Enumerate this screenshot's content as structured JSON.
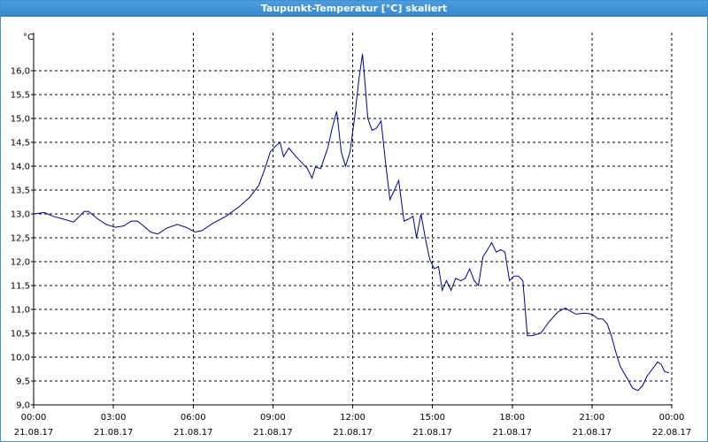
{
  "window_title": "Taupunkt-Temperatur [°C] skaliert",
  "chart_data": {
    "type": "line",
    "y_unit": "°C",
    "x": [
      0,
      0.4,
      0.73,
      1.07,
      1.5,
      1.9,
      2.07,
      2.4,
      2.73,
      3.07,
      3.4,
      3.67,
      3.9,
      4.13,
      4.4,
      4.67,
      5.0,
      5.4,
      5.73,
      6.07,
      6.33,
      6.73,
      7.23,
      7.73,
      8.13,
      8.47,
      8.73,
      8.9,
      9.1,
      9.27,
      9.4,
      9.6,
      9.87,
      10.13,
      10.3,
      10.47,
      10.6,
      10.8,
      11.07,
      11.23,
      11.4,
      11.57,
      11.73,
      11.9,
      12.07,
      12.23,
      12.37,
      12.47,
      12.57,
      12.73,
      12.9,
      13.07,
      13.23,
      13.4,
      13.57,
      13.73,
      13.93,
      14.13,
      14.27,
      14.4,
      14.57,
      14.73,
      14.9,
      15.07,
      15.23,
      15.37,
      15.53,
      15.7,
      15.87,
      16.07,
      16.23,
      16.4,
      16.57,
      16.73,
      16.9,
      17.07,
      17.23,
      17.4,
      17.57,
      17.73,
      17.9,
      18.07,
      18.23,
      18.4,
      18.57,
      18.73,
      19.07,
      19.4,
      19.73,
      20.0,
      20.23,
      20.4,
      20.73,
      21.0,
      21.23,
      21.4,
      21.57,
      21.73,
      21.9,
      22.07,
      22.33,
      22.53,
      22.73,
      22.9,
      23.07,
      23.27,
      23.47,
      23.6,
      23.73,
      23.9
    ],
    "series": [
      {
        "color": "#00008c",
        "values": [
          13.0,
          13.03,
          12.95,
          12.9,
          12.83,
          13.05,
          13.05,
          12.9,
          12.78,
          12.72,
          12.75,
          12.85,
          12.85,
          12.75,
          12.62,
          12.58,
          12.7,
          12.78,
          12.72,
          12.62,
          12.65,
          12.8,
          12.95,
          13.15,
          13.35,
          13.6,
          14.0,
          14.3,
          14.42,
          14.5,
          14.2,
          14.38,
          14.2,
          14.05,
          13.95,
          13.75,
          13.98,
          13.95,
          14.4,
          14.8,
          15.15,
          14.3,
          14.0,
          14.3,
          15.0,
          15.8,
          16.35,
          15.7,
          15.0,
          14.75,
          14.8,
          14.95,
          14.1,
          13.3,
          13.5,
          13.7,
          12.85,
          12.9,
          12.95,
          12.5,
          13.0,
          12.5,
          12.05,
          11.85,
          11.9,
          11.4,
          11.6,
          11.4,
          11.65,
          11.6,
          11.65,
          11.85,
          11.6,
          11.5,
          12.1,
          12.25,
          12.4,
          12.2,
          12.25,
          12.2,
          11.6,
          11.7,
          11.7,
          11.6,
          10.45,
          10.45,
          10.5,
          10.75,
          10.95,
          11.03,
          10.95,
          10.9,
          10.92,
          10.9,
          10.8,
          10.8,
          10.7,
          10.45,
          10.1,
          9.8,
          9.55,
          9.35,
          9.3,
          9.4,
          9.6,
          9.75,
          9.9,
          9.85,
          9.7,
          9.67
        ]
      }
    ],
    "xlim": [
      0,
      24
    ],
    "xticks": [
      {
        "value": 0,
        "label": "00:00"
      },
      {
        "value": 3,
        "label": "03:00"
      },
      {
        "value": 6,
        "label": "06:00"
      },
      {
        "value": 9,
        "label": "09:00"
      },
      {
        "value": 12,
        "label": "12:00"
      },
      {
        "value": 15,
        "label": "15:00"
      },
      {
        "value": 18,
        "label": "18:00"
      },
      {
        "value": 21,
        "label": "21:00"
      },
      {
        "value": 24,
        "label": "00:00"
      }
    ],
    "xtick_dates": [
      "21.08.17",
      "21.08.17",
      "21.08.17",
      "21.08.17",
      "21.08.17",
      "21.08.17",
      "21.08.17",
      "21.08.17",
      "22.08.17"
    ],
    "ylim": [
      9.0,
      16.8
    ],
    "yticks": [
      {
        "value": 9.0,
        "label": "9,0"
      },
      {
        "value": 9.5,
        "label": "9,5"
      },
      {
        "value": 10.0,
        "label": "10,0"
      },
      {
        "value": 10.5,
        "label": "10,5"
      },
      {
        "value": 11.0,
        "label": "11,0"
      },
      {
        "value": 11.5,
        "label": "11,5"
      },
      {
        "value": 12.0,
        "label": "12,0"
      },
      {
        "value": 12.5,
        "label": "12,5"
      },
      {
        "value": 13.0,
        "label": "13,0"
      },
      {
        "value": 13.5,
        "label": "13,5"
      },
      {
        "value": 14.0,
        "label": "14,0"
      },
      {
        "value": 14.5,
        "label": "14,5"
      },
      {
        "value": 15.0,
        "label": "15,0"
      },
      {
        "value": 15.5,
        "label": "15,5"
      },
      {
        "value": 16.0,
        "label": "16,0"
      }
    ],
    "grid": true
  }
}
